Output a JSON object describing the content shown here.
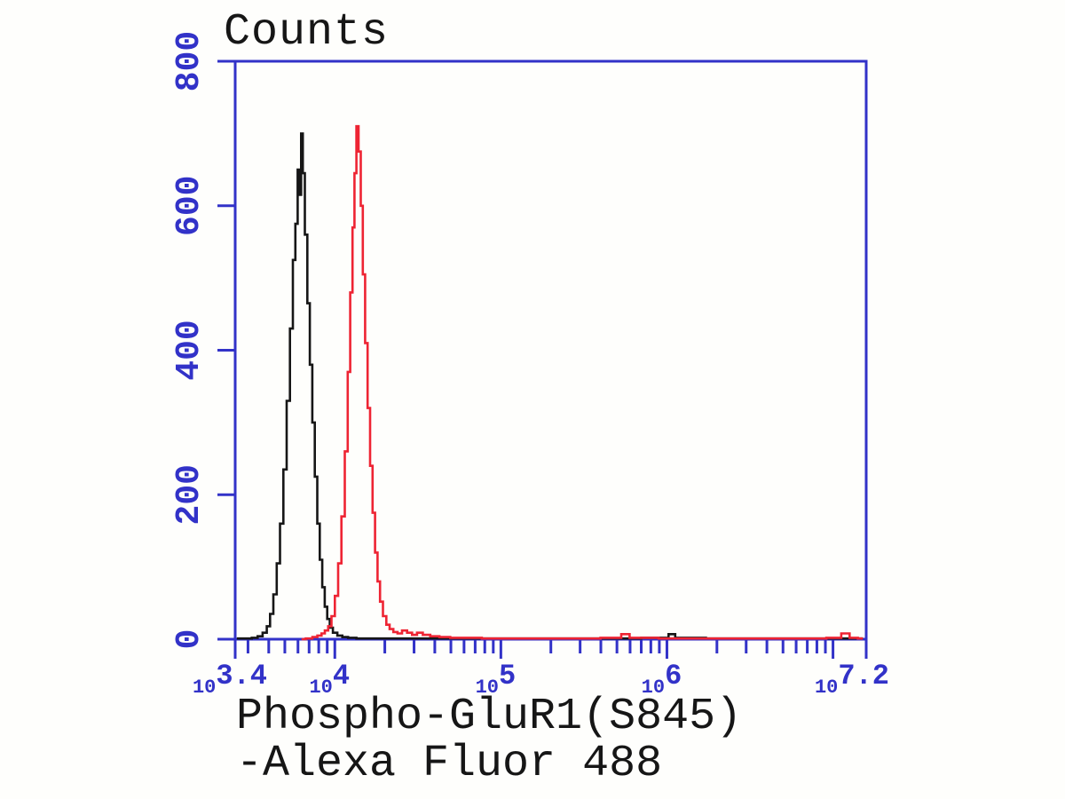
{
  "chart_data": {
    "type": "line",
    "subtype": "flow-cytometry-step-histogram",
    "title": "Counts",
    "xlabel_line1": "Phospho-GluR1(S845)",
    "xlabel_line2": "-Alexa Fluor 488",
    "grid": false,
    "legend": "none",
    "x_axis": {
      "scale": "log10",
      "min_log": 3.4,
      "max_log": 7.2,
      "labeled_ticks": [
        {
          "base": "10",
          "exponent": "3.4",
          "log": 3.4
        },
        {
          "base": "10",
          "exponent": "4",
          "log": 4
        },
        {
          "base": "10",
          "exponent": "5",
          "log": 5
        },
        {
          "base": "10",
          "exponent": "6",
          "log": 6
        },
        {
          "base": "10",
          "exponent": "7.2",
          "log": 7.2
        }
      ],
      "major_tick_logs": [
        4,
        5,
        6,
        7
      ],
      "minor_tick_mantissas": [
        2,
        3,
        4,
        5,
        6,
        7,
        8,
        9
      ]
    },
    "y_axis": {
      "min": 0,
      "max": 800,
      "ticks": [
        0,
        200,
        400,
        600,
        800
      ]
    },
    "colors": {
      "axis": "#3232c8",
      "tick_label": "#3232c8",
      "black_curve": "#161616",
      "red_curve": "#ee2433"
    },
    "series": [
      {
        "name": "black-curve",
        "color_key": "black_curve",
        "peak_log": 3.8,
        "peak_count": 700,
        "points": [
          [
            3.41,
            1
          ],
          [
            3.48,
            1
          ],
          [
            3.52,
            2
          ],
          [
            3.55,
            4
          ],
          [
            3.58,
            9
          ],
          [
            3.6,
            18
          ],
          [
            3.62,
            35
          ],
          [
            3.64,
            62
          ],
          [
            3.66,
            105
          ],
          [
            3.68,
            160
          ],
          [
            3.7,
            235
          ],
          [
            3.72,
            330
          ],
          [
            3.74,
            430
          ],
          [
            3.755,
            525
          ],
          [
            3.77,
            575
          ],
          [
            3.782,
            650
          ],
          [
            3.792,
            615
          ],
          [
            3.802,
            700
          ],
          [
            3.812,
            645
          ],
          [
            3.827,
            560
          ],
          [
            3.842,
            465
          ],
          [
            3.857,
            380
          ],
          [
            3.872,
            300
          ],
          [
            3.887,
            225
          ],
          [
            3.902,
            160
          ],
          [
            3.917,
            110
          ],
          [
            3.932,
            72
          ],
          [
            3.947,
            45
          ],
          [
            3.962,
            28
          ],
          [
            3.977,
            16
          ],
          [
            4.0,
            9
          ],
          [
            4.03,
            5
          ],
          [
            4.06,
            3
          ],
          [
            4.1,
            2
          ],
          [
            4.16,
            1
          ],
          [
            4.3,
            1
          ],
          [
            4.55,
            1
          ],
          [
            4.9,
            1
          ],
          [
            5.3,
            1
          ],
          [
            5.7,
            1
          ],
          [
            5.99,
            2
          ],
          [
            6.03,
            7
          ],
          [
            6.07,
            2
          ],
          [
            6.4,
            1
          ],
          [
            6.8,
            1
          ],
          [
            7.05,
            1
          ],
          [
            7.18,
            1
          ]
        ]
      },
      {
        "name": "red-curve",
        "color_key": "red_curve",
        "peak_log": 4.14,
        "peak_count": 710,
        "points": [
          [
            3.8,
            0
          ],
          [
            3.85,
            1
          ],
          [
            3.88,
            3
          ],
          [
            3.91,
            5
          ],
          [
            3.93,
            8
          ],
          [
            3.95,
            12
          ],
          [
            3.97,
            18
          ],
          [
            3.99,
            32
          ],
          [
            4.01,
            60
          ],
          [
            4.03,
            105
          ],
          [
            4.05,
            170
          ],
          [
            4.07,
            260
          ],
          [
            4.085,
            370
          ],
          [
            4.1,
            480
          ],
          [
            4.113,
            570
          ],
          [
            4.124,
            645
          ],
          [
            4.136,
            710
          ],
          [
            4.15,
            675
          ],
          [
            4.162,
            600
          ],
          [
            4.175,
            505
          ],
          [
            4.19,
            410
          ],
          [
            4.205,
            320
          ],
          [
            4.22,
            240
          ],
          [
            4.235,
            175
          ],
          [
            4.25,
            120
          ],
          [
            4.265,
            80
          ],
          [
            4.28,
            52
          ],
          [
            4.3,
            32
          ],
          [
            4.32,
            20
          ],
          [
            4.34,
            14
          ],
          [
            4.365,
            10
          ],
          [
            4.39,
            8
          ],
          [
            4.42,
            12
          ],
          [
            4.45,
            9
          ],
          [
            4.48,
            6
          ],
          [
            4.51,
            9
          ],
          [
            4.55,
            6
          ],
          [
            4.6,
            4
          ],
          [
            4.66,
            3
          ],
          [
            4.73,
            2
          ],
          [
            4.82,
            2
          ],
          [
            4.95,
            1
          ],
          [
            5.2,
            1
          ],
          [
            5.5,
            1
          ],
          [
            5.7,
            2
          ],
          [
            5.75,
            7
          ],
          [
            5.8,
            2
          ],
          [
            6.1,
            1
          ],
          [
            6.5,
            1
          ],
          [
            6.9,
            1
          ],
          [
            7.02,
            2
          ],
          [
            7.08,
            8
          ],
          [
            7.12,
            2
          ],
          [
            7.18,
            1
          ]
        ]
      }
    ]
  }
}
